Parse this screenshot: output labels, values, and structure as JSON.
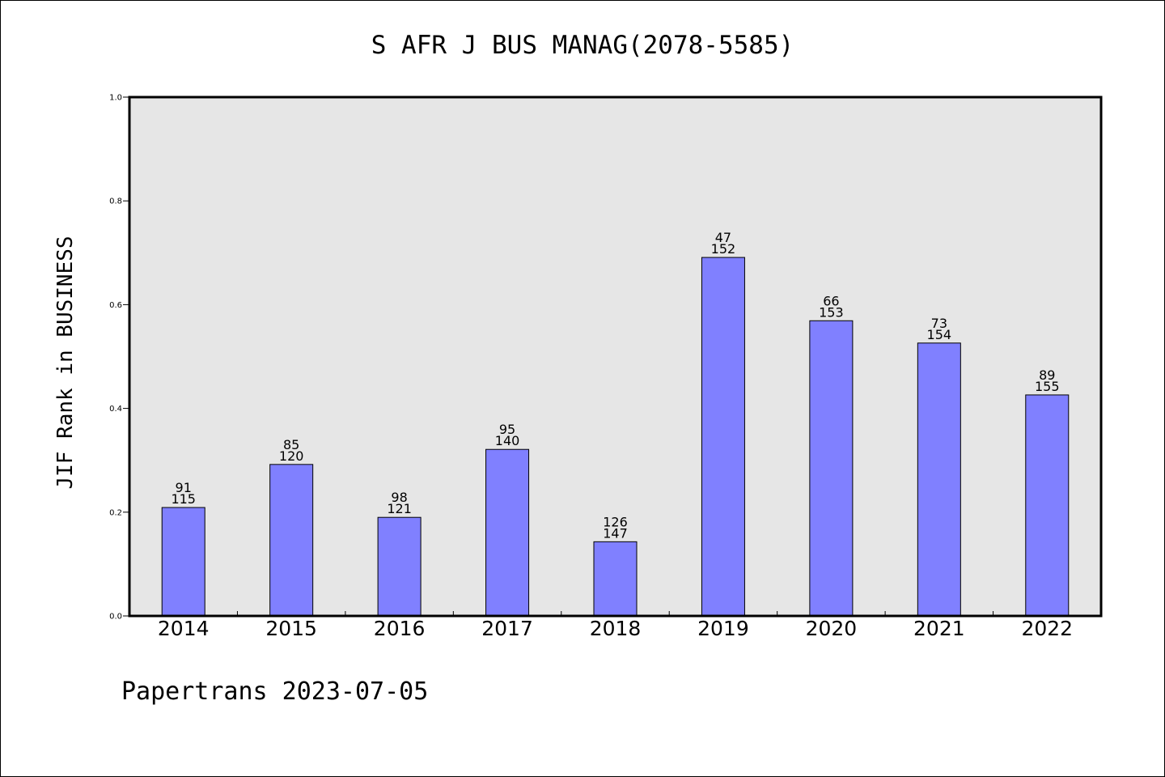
{
  "chart_data": {
    "type": "bar",
    "title": "S AFR J BUS MANAG(2078-5585)",
    "xlabel": "",
    "ylabel": "JIF Rank in BUSINESS",
    "ylim": [
      0,
      1.0
    ],
    "yticks": [
      "0.0",
      "0.2",
      "0.4",
      "0.6",
      "0.8",
      "1.0"
    ],
    "categories": [
      "2014",
      "2015",
      "2016",
      "2017",
      "2018",
      "2019",
      "2020",
      "2021",
      "2022"
    ],
    "values": [
      0.209,
      0.292,
      0.19,
      0.321,
      0.143,
      0.691,
      0.569,
      0.526,
      0.426
    ],
    "labels": [
      {
        "rank": "91",
        "total": "115"
      },
      {
        "rank": "85",
        "total": "120"
      },
      {
        "rank": "98",
        "total": "121"
      },
      {
        "rank": "95",
        "total": "140"
      },
      {
        "rank": "126",
        "total": "147"
      },
      {
        "rank": "47",
        "total": "152"
      },
      {
        "rank": "66",
        "total": "153"
      },
      {
        "rank": "73",
        "total": "154"
      },
      {
        "rank": "89",
        "total": "155"
      }
    ],
    "grid": false,
    "colors": {
      "bar": "#8080ff",
      "plot_background": "#e6e6e6",
      "edge": "#000000"
    }
  },
  "footer": {
    "text": "Papertrans 2023-07-05"
  }
}
